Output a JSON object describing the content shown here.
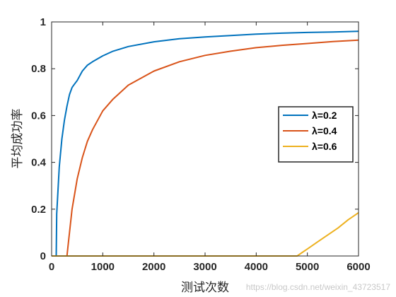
{
  "chart_data": {
    "type": "line",
    "title": "",
    "xlabel": "测试次数",
    "ylabel": "平均成功率",
    "xlim": [
      0,
      6000
    ],
    "ylim": [
      0,
      1
    ],
    "xticks": [
      0,
      1000,
      2000,
      3000,
      4000,
      5000,
      6000
    ],
    "yticks": [
      0,
      0.2,
      0.4,
      0.6,
      0.8,
      1
    ],
    "xtick_labels": [
      "0",
      "1000",
      "2000",
      "3000",
      "4000",
      "5000",
      "6000"
    ],
    "ytick_labels": [
      "0",
      "0.2",
      "0.4",
      "0.6",
      "0.8",
      "1"
    ],
    "grid": false,
    "legend_position": "right",
    "series": [
      {
        "name": "λ=0.2",
        "color": "#0072BD",
        "x": [
          0,
          90,
          100,
          150,
          200,
          250,
          300,
          350,
          400,
          450,
          500,
          600,
          700,
          800,
          1000,
          1200,
          1500,
          2000,
          2500,
          3000,
          3500,
          4000,
          4500,
          5000,
          5500,
          6000
        ],
        "y": [
          0,
          0,
          0.18,
          0.38,
          0.5,
          0.58,
          0.64,
          0.69,
          0.72,
          0.735,
          0.75,
          0.79,
          0.815,
          0.83,
          0.855,
          0.875,
          0.895,
          0.915,
          0.928,
          0.936,
          0.942,
          0.948,
          0.952,
          0.955,
          0.957,
          0.96
        ]
      },
      {
        "name": "λ=0.4",
        "color": "#D95319",
        "x": [
          0,
          300,
          320,
          400,
          500,
          600,
          700,
          800,
          1000,
          1200,
          1500,
          2000,
          2500,
          3000,
          3500,
          4000,
          4500,
          5000,
          5500,
          6000
        ],
        "y": [
          0,
          0,
          0.04,
          0.2,
          0.33,
          0.42,
          0.49,
          0.54,
          0.62,
          0.67,
          0.73,
          0.79,
          0.83,
          0.857,
          0.875,
          0.89,
          0.9,
          0.908,
          0.916,
          0.922
        ]
      },
      {
        "name": "λ=0.6",
        "color": "#EDB120",
        "x": [
          0,
          4800,
          4900,
          5000,
          5200,
          5400,
          5600,
          5800,
          6000
        ],
        "y": [
          0,
          0,
          0.015,
          0.03,
          0.06,
          0.09,
          0.12,
          0.155,
          0.185
        ]
      }
    ]
  },
  "watermark": "https://blog.csdn.net/weixin_43723517"
}
